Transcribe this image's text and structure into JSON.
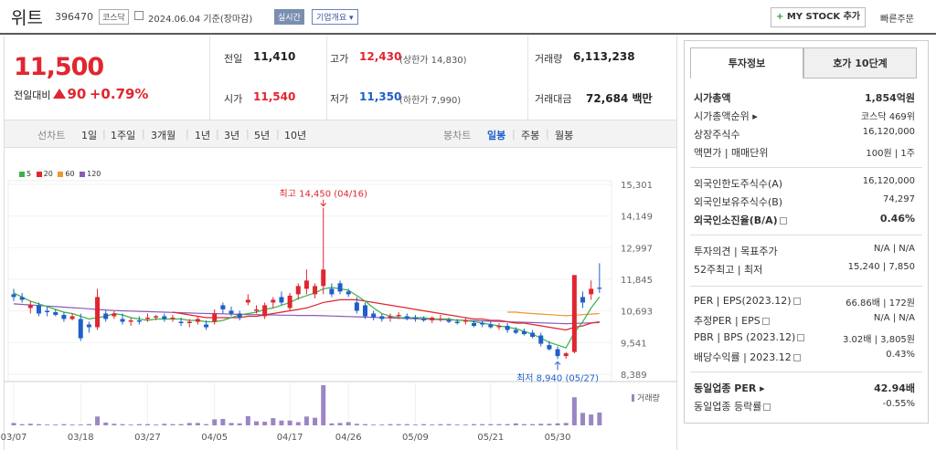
{
  "header": {
    "name": "위트",
    "code": "396470",
    "market": "코스닥",
    "date": "2024.06.04 기준(장마감)",
    "realtime": "실시간",
    "corp_info": "기업개요 ▾",
    "mystock_plus": "+",
    "mystock": "MY STOCK 추가",
    "quick_order": "빠른주문"
  },
  "quote": {
    "price": "11,500",
    "change_label": "전일대비",
    "change": "90",
    "change_pct": "+0.79%",
    "prev_label": "전일",
    "prev": "11,410",
    "open_label": "시가",
    "open": "11,540",
    "high_label": "고가",
    "high": "12,430",
    "upper_limit": "(상한가 14,830)",
    "low_label": "저가",
    "low": "11,350",
    "lower_limit": "(하한가 7,990)",
    "volume_label": "거래량",
    "volume": "6,113,238",
    "amount_label": "거래대금",
    "amount": "72,684 백만"
  },
  "periods": {
    "label": "선차트",
    "items": [
      "1일",
      "1주일",
      "3개월",
      "1년",
      "3년",
      "5년",
      "10년"
    ],
    "candle_label": "봉차트",
    "candle": [
      "일봉",
      "주봉",
      "월봉"
    ],
    "selected": "일봉"
  },
  "legend": [
    {
      "label": "5",
      "color": "#3bb34a"
    },
    {
      "label": "20",
      "color": "#e0262f"
    },
    {
      "label": "60",
      "color": "#f0962c"
    },
    {
      "label": "120",
      "color": "#8a5bb8"
    }
  ],
  "chart_data": {
    "type": "candlestick",
    "y_ticks": [
      "15,301",
      "14,149",
      "12,997",
      "11,845",
      "10,693",
      "9,541",
      "8,389"
    ],
    "x_ticks": [
      "03/07",
      "03/18",
      "03/27",
      "04/05",
      "04/17",
      "04/26",
      "05/09",
      "05/21",
      "05/30"
    ],
    "ylim": [
      8389,
      15301
    ],
    "max_label": "최고 14,450 (04/16)",
    "min_label": "최저 8,940 (05/27)",
    "volume_label": "거래량",
    "candles": [
      [
        11300,
        11500,
        11050,
        11200
      ],
      [
        11200,
        11350,
        11000,
        11100
      ],
      [
        10800,
        11050,
        10600,
        10900
      ],
      [
        10900,
        11000,
        10500,
        10600
      ],
      [
        10700,
        10850,
        10500,
        10650
      ],
      [
        10650,
        10750,
        10500,
        10550
      ],
      [
        10550,
        10650,
        10300,
        10400
      ],
      [
        10400,
        10600,
        10350,
        10500
      ],
      [
        10400,
        10600,
        9600,
        9700
      ],
      [
        10200,
        10300,
        9900,
        10100
      ],
      [
        10100,
        11500,
        10000,
        11200
      ],
      [
        10600,
        10700,
        10300,
        10400
      ],
      [
        10500,
        10700,
        10400,
        10600
      ],
      [
        10400,
        10600,
        10200,
        10300
      ],
      [
        10300,
        10450,
        10150,
        10350
      ],
      [
        10350,
        10500,
        10200,
        10300
      ],
      [
        10400,
        10600,
        10300,
        10450
      ],
      [
        10450,
        10550,
        10350,
        10500
      ],
      [
        10500,
        10600,
        10300,
        10400
      ],
      [
        10400,
        10550,
        10300,
        10450
      ],
      [
        10300,
        10450,
        10150,
        10250
      ],
      [
        10250,
        10400,
        10100,
        10300
      ],
      [
        10300,
        10500,
        10200,
        10400
      ],
      [
        10200,
        10350,
        10000,
        10100
      ],
      [
        10300,
        10750,
        10200,
        10600
      ],
      [
        10900,
        11000,
        10600,
        10750
      ],
      [
        10700,
        10850,
        10500,
        10600
      ],
      [
        10600,
        10700,
        10350,
        10450
      ],
      [
        11000,
        11300,
        10900,
        11100
      ],
      [
        10700,
        10900,
        10600,
        10750
      ],
      [
        10500,
        11000,
        10400,
        10900
      ],
      [
        11000,
        11200,
        10800,
        11100
      ],
      [
        11200,
        11400,
        10900,
        11000
      ],
      [
        10800,
        11350,
        10700,
        11250
      ],
      [
        11300,
        11700,
        11100,
        11600
      ],
      [
        11500,
        12200,
        11300,
        11800
      ],
      [
        11300,
        11700,
        11150,
        11600
      ],
      [
        11600,
        14450,
        11300,
        12200
      ],
      [
        11500,
        11700,
        11200,
        11300
      ],
      [
        11700,
        11800,
        11300,
        11400
      ],
      [
        11400,
        11500,
        11200,
        11300
      ],
      [
        11000,
        11200,
        10600,
        10700
      ],
      [
        10900,
        11000,
        10400,
        10500
      ],
      [
        10600,
        10700,
        10350,
        10450
      ],
      [
        10500,
        10600,
        10300,
        10400
      ],
      [
        10450,
        10600,
        10300,
        10500
      ],
      [
        10500,
        10650,
        10400,
        10550
      ],
      [
        10500,
        10600,
        10350,
        10400
      ],
      [
        10450,
        10550,
        10300,
        10400
      ],
      [
        10400,
        10500,
        10300,
        10350
      ],
      [
        10350,
        10500,
        10250,
        10450
      ],
      [
        10400,
        10550,
        10300,
        10400
      ],
      [
        10350,
        10450,
        10250,
        10300
      ],
      [
        10300,
        10400,
        10200,
        10250
      ],
      [
        10300,
        10450,
        10200,
        10350
      ],
      [
        10250,
        10350,
        10100,
        10150
      ],
      [
        10250,
        10350,
        10100,
        10200
      ],
      [
        10200,
        10300,
        10050,
        10100
      ],
      [
        10100,
        10250,
        10000,
        10150
      ],
      [
        10150,
        10250,
        9900,
        10000
      ],
      [
        10000,
        10100,
        9850,
        9900
      ],
      [
        9950,
        10050,
        9800,
        9850
      ],
      [
        9900,
        10000,
        9700,
        9750
      ],
      [
        9800,
        9900,
        9400,
        9500
      ],
      [
        9450,
        9600,
        9250,
        9300
      ],
      [
        9300,
        9400,
        8940,
        9050
      ],
      [
        9050,
        9200,
        8950,
        9150
      ],
      [
        9200,
        12000,
        9150,
        12000
      ],
      [
        11200,
        11400,
        10800,
        11000
      ],
      [
        11300,
        11800,
        11100,
        11500
      ],
      [
        11540,
        12430,
        11350,
        11500
      ]
    ],
    "volumes": [
      0.06,
      0.03,
      0.04,
      0.03,
      0.02,
      0.02,
      0.03,
      0.02,
      0.02,
      0.03,
      0.22,
      0.07,
      0.04,
      0.03,
      0.02,
      0.03,
      0.03,
      0.02,
      0.04,
      0.03,
      0.03,
      0.06,
      0.06,
      0.03,
      0.15,
      0.16,
      0.06,
      0.05,
      0.23,
      0.1,
      0.09,
      0.18,
      0.12,
      0.12,
      0.08,
      0.22,
      0.19,
      1.0,
      0.05,
      0.06,
      0.08,
      0.04,
      0.03,
      0.02,
      0.02,
      0.03,
      0.03,
      0.03,
      0.02,
      0.03,
      0.02,
      0.03,
      0.03,
      0.02,
      0.02,
      0.03,
      0.03,
      0.03,
      0.03,
      0.03,
      0.05,
      0.03,
      0.03,
      0.04,
      0.04,
      0.05,
      0.06,
      0.7,
      0.31,
      0.27,
      0.32
    ],
    "ma5": [
      11350,
      11200,
      11050,
      10950,
      10850,
      10750,
      10650,
      10600,
      10500,
      10400,
      10450,
      10500,
      10600,
      10550,
      10450,
      10400,
      10350,
      10400,
      10400,
      10400,
      10400,
      10350,
      10350,
      10300,
      10300,
      10350,
      10450,
      10550,
      10600,
      10650,
      10750,
      10800,
      10900,
      11000,
      11150,
      11250,
      11350,
      11500,
      11550,
      11500,
      11450,
      11250,
      11050,
      10800,
      10600,
      10500,
      10450,
      10450,
      10450,
      10450,
      10400,
      10400,
      10400,
      10350,
      10350,
      10300,
      10250,
      10200,
      10150,
      10100,
      10050,
      9950,
      9850,
      9700,
      9550,
      9450,
      9350,
      9900,
      10300,
      10800,
      11200
    ],
    "ma20": [
      null,
      null,
      null,
      null,
      null,
      null,
      null,
      null,
      null,
      null,
      null,
      null,
      null,
      null,
      null,
      null,
      null,
      null,
      null,
      10650,
      10600,
      10550,
      10500,
      10450,
      10450,
      10450,
      10450,
      10450,
      10500,
      10500,
      10550,
      10600,
      10650,
      10700,
      10750,
      10800,
      10900,
      11000,
      11050,
      11100,
      11100,
      11100,
      11050,
      11000,
      10950,
      10900,
      10850,
      10800,
      10750,
      10700,
      10650,
      10600,
      10550,
      10500,
      10450,
      10400,
      10400,
      10350,
      10350,
      10300,
      10250,
      10250,
      10200,
      10150,
      10100,
      10050,
      10000,
      10100,
      10150,
      10250,
      10300
    ],
    "ma60": [
      null,
      null,
      null,
      null,
      null,
      null,
      null,
      null,
      null,
      null,
      null,
      null,
      null,
      null,
      null,
      null,
      null,
      null,
      null,
      null,
      null,
      null,
      null,
      null,
      null,
      null,
      null,
      null,
      null,
      null,
      null,
      null,
      null,
      null,
      null,
      null,
      null,
      null,
      null,
      null,
      null,
      null,
      null,
      null,
      null,
      null,
      null,
      null,
      null,
      null,
      null,
      null,
      null,
      null,
      null,
      null,
      null,
      null,
      null,
      10650,
      10650,
      10620,
      10600,
      10580,
      10560,
      10540,
      10520,
      10540,
      10560,
      10580,
      10600
    ],
    "ma120": [
      10950,
      10930,
      10910,
      10890,
      10870,
      10850,
      10830,
      10810,
      10790,
      10770,
      10750,
      10730,
      10710,
      10700,
      10690,
      10680,
      10670,
      10660,
      10650,
      10640,
      10630,
      10620,
      10610,
      10600,
      10600,
      10590,
      10580,
      10570,
      10560,
      10560,
      10550,
      10550,
      10540,
      10540,
      10530,
      10530,
      10530,
      10520,
      10510,
      10500,
      10490,
      10480,
      10470,
      10460,
      10450,
      10440,
      10430,
      10420,
      10410,
      10400,
      10390,
      10380,
      10370,
      10360,
      10350,
      10340,
      10330,
      10320,
      10310,
      10300,
      10290,
      10280,
      10270,
      10260,
      10250,
      10240,
      10230,
      10240,
      10250,
      10260,
      10270
    ]
  },
  "info": {
    "tab1": "투자정보",
    "tab2": "호가 10단계",
    "rows1": [
      {
        "l": "시가총액",
        "v": "1,854억원",
        "bold": true
      },
      {
        "l": "시가총액순위 ▸",
        "v": "코스닥 469위"
      },
      {
        "l": "상장주식수",
        "v": "16,120,000"
      },
      {
        "l": "액면가 | 매매단위",
        "v": "100원 | 1주"
      }
    ],
    "rows2": [
      {
        "l": "외국인한도주식수(A)",
        "v": "16,120,000"
      },
      {
        "l": "외국인보유주식수(B)",
        "v": "74,297"
      },
      {
        "l": "외국인소진율(B/A)",
        "v": "0.46%",
        "bold": true,
        "q": true
      }
    ],
    "rows3": [
      {
        "l": "투자의견 | 목표주가",
        "v": "N/A | N/A"
      },
      {
        "l": "52주최고 | 최저",
        "v": "15,240 | 7,850"
      }
    ],
    "rows4": [
      {
        "l": "PER | EPS(2023.12)",
        "v": "66.86배 | 172원",
        "q": true
      },
      {
        "l": "추정PER | EPS",
        "v": "N/A | N/A",
        "q": true
      },
      {
        "l": "PBR | BPS (2023.12)",
        "v": "3.02배 | 3,805원",
        "q": true
      },
      {
        "l": "배당수익률 | 2023.12",
        "v": "0.43%",
        "q": true
      }
    ],
    "rows5": [
      {
        "l": "동일업종 PER ▸",
        "v": "42.94배",
        "bold": true
      },
      {
        "l": "동일업종 등락률",
        "v": "-0.55%",
        "neg": true,
        "q": true
      }
    ]
  }
}
